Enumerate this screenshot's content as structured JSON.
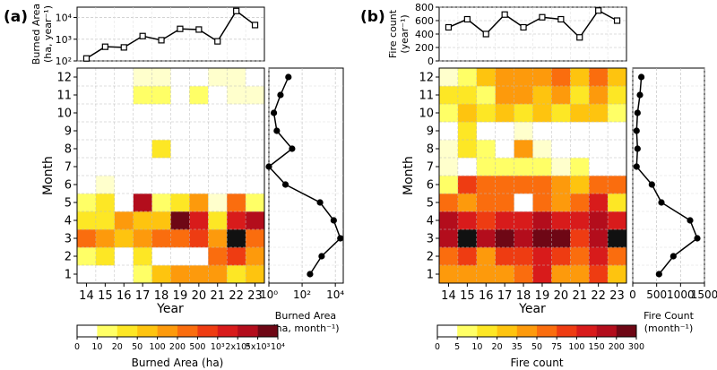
{
  "chart_data": [
    {
      "panel_label": "(a)",
      "type": "heatmap",
      "x_ticks": [
        "14",
        "15",
        "16",
        "17",
        "18",
        "19",
        "20",
        "21",
        "22",
        "23"
      ],
      "y_ticks": [
        "1",
        "2",
        "3",
        "4",
        "5",
        "6",
        "7",
        "8",
        "9",
        "10",
        "11",
        "12"
      ],
      "xlabel": "Year",
      "ylabel": "Month",
      "matrix_bins": [
        [
          0,
          0,
          0,
          2,
          4,
          5,
          5,
          5,
          3,
          4
        ],
        [
          2,
          3,
          0,
          3,
          0,
          0,
          0,
          6,
          7,
          5
        ],
        [
          6,
          5,
          4,
          5,
          6,
          6,
          7,
          5,
          11,
          6
        ],
        [
          3,
          3,
          5,
          4,
          4,
          10,
          8,
          3,
          8,
          9
        ],
        [
          2,
          3,
          0,
          9,
          2,
          3,
          5,
          1,
          6,
          2
        ],
        [
          0,
          1,
          0,
          0,
          0,
          0,
          0,
          0,
          0,
          0
        ],
        [
          0,
          0,
          0,
          0,
          0,
          0,
          0,
          0,
          0,
          0
        ],
        [
          0,
          0,
          0,
          0,
          3,
          0,
          0,
          0,
          0,
          0
        ],
        [
          0,
          0,
          0,
          0,
          0,
          0,
          0,
          0,
          0,
          0
        ],
        [
          0,
          0,
          0,
          0,
          0,
          0,
          0,
          0,
          0,
          0
        ],
        [
          0,
          0,
          0,
          2,
          2,
          0,
          2,
          0,
          1,
          1
        ],
        [
          0,
          0,
          0,
          1,
          1,
          0,
          0,
          1,
          1,
          0
        ]
      ],
      "colorbar": {
        "label": "Burned Area (ha)",
        "tick_labels": [
          "0",
          "10",
          "20",
          "50",
          "100",
          "200",
          "500",
          "10³",
          "2x10³",
          "5x10³",
          "10⁴"
        ]
      },
      "top": {
        "type": "line",
        "ylabel_lines": [
          "Burned Area",
          "(ha, year⁻¹)"
        ],
        "yscale": "log",
        "ylim": [
          100,
          30000
        ],
        "y_ticks": [
          {
            "value": 100,
            "label": "10²"
          },
          {
            "value": 1000,
            "label": "10³"
          },
          {
            "value": 10000,
            "label": "10⁴"
          }
        ],
        "values": [
          130,
          450,
          420,
          1400,
          900,
          3000,
          2800,
          800,
          20000,
          4500
        ]
      },
      "side": {
        "type": "line",
        "xscale": "log",
        "xlim": [
          1,
          30000
        ],
        "x_ticks": [
          {
            "value": 1,
            "label": "10⁰"
          },
          {
            "value": 100,
            "label": "10²"
          },
          {
            "value": 10000,
            "label": "10⁴"
          }
        ],
        "xlabel_lines": [
          "Burned Area",
          "(ha, month⁻¹)"
        ],
        "values": [
          300,
          1500,
          20000,
          8000,
          1200,
          10,
          1,
          25,
          3,
          2,
          5,
          15
        ]
      }
    },
    {
      "panel_label": "(b)",
      "type": "heatmap",
      "x_ticks": [
        "14",
        "15",
        "16",
        "17",
        "18",
        "19",
        "20",
        "21",
        "22",
        "23"
      ],
      "y_ticks": [
        "1",
        "2",
        "3",
        "4",
        "5",
        "6",
        "7",
        "8",
        "9",
        "10",
        "11",
        "12"
      ],
      "xlabel": "Year",
      "ylabel": "Month",
      "matrix_bins": [
        [
          5,
          5,
          5,
          5,
          6,
          8,
          5,
          5,
          7,
          4
        ],
        [
          6,
          7,
          5,
          7,
          7,
          8,
          7,
          6,
          8,
          6
        ],
        [
          9,
          11,
          9,
          10,
          9,
          10,
          10,
          7,
          9,
          11
        ],
        [
          9,
          8,
          7,
          8,
          8,
          9,
          8,
          8,
          9,
          8
        ],
        [
          6,
          5,
          6,
          6,
          0,
          6,
          5,
          6,
          8,
          3
        ],
        [
          2,
          7,
          6,
          6,
          6,
          6,
          5,
          4,
          6,
          6
        ],
        [
          1,
          0,
          2,
          2,
          2,
          2,
          1,
          2,
          0,
          0
        ],
        [
          1,
          3,
          2,
          0,
          5,
          1,
          0,
          0,
          0,
          0
        ],
        [
          0,
          3,
          0,
          0,
          1,
          0,
          0,
          0,
          0,
          0
        ],
        [
          2,
          4,
          3,
          4,
          3,
          4,
          3,
          4,
          4,
          2
        ],
        [
          3,
          3,
          2,
          5,
          5,
          4,
          5,
          3,
          5,
          3
        ],
        [
          1,
          2,
          4,
          5,
          5,
          5,
          6,
          4,
          6,
          4
        ]
      ],
      "colorbar": {
        "label": "Fire count",
        "tick_labels": [
          "0",
          "5",
          "10",
          "20",
          "35",
          "50",
          "75",
          "100",
          "150",
          "200",
          "300"
        ]
      },
      "top": {
        "type": "line",
        "ylabel_lines": [
          "Fire count",
          "(year⁻¹)"
        ],
        "yscale": "linear",
        "ylim": [
          0,
          800
        ],
        "y_ticks": [
          {
            "value": 0,
            "label": "0"
          },
          {
            "value": 200,
            "label": "200"
          },
          {
            "value": 400,
            "label": "400"
          },
          {
            "value": 600,
            "label": "600"
          },
          {
            "value": 800,
            "label": "800"
          }
        ],
        "values": [
          500,
          620,
          400,
          690,
          500,
          650,
          620,
          350,
          750,
          600
        ]
      },
      "side": {
        "type": "line",
        "xscale": "linear",
        "xlim": [
          0,
          1500
        ],
        "x_ticks": [
          {
            "value": 0,
            "label": "0"
          },
          {
            "value": 500,
            "label": "500"
          },
          {
            "value": 1000,
            "label": "1000"
          },
          {
            "value": 1500,
            "label": "1500"
          }
        ],
        "xlabel_lines": [
          "Fire Count",
          "(month⁻¹)"
        ],
        "values": [
          550,
          850,
          1350,
          1200,
          600,
          400,
          80,
          100,
          80,
          100,
          150,
          180
        ]
      }
    }
  ],
  "colors": {
    "bins": [
      "#ffffff",
      "#ffffcc",
      "#ffff66",
      "#fde725",
      "#fec40f",
      "#fd9a0c",
      "#fa6d0e",
      "#ee3c12",
      "#d81b1b",
      "#b30d1c",
      "#6e0715",
      "#111111"
    ]
  }
}
